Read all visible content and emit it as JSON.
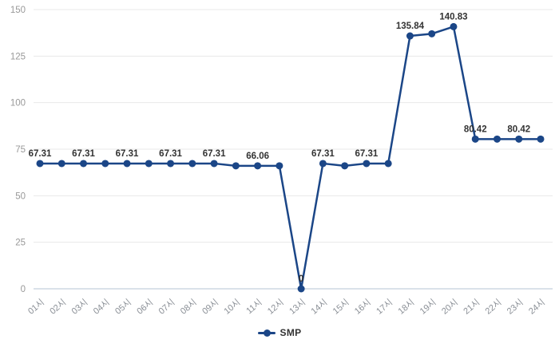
{
  "chart_data": {
    "type": "line",
    "title": "",
    "categories": [
      "01시",
      "02시",
      "03시",
      "04시",
      "05시",
      "06시",
      "07시",
      "08시",
      "09시",
      "10시",
      "11시",
      "12시",
      "13시",
      "14시",
      "15시",
      "16시",
      "17시",
      "18시",
      "19시",
      "20시",
      "21시",
      "22시",
      "23시",
      "24시"
    ],
    "series": [
      {
        "name": "SMP",
        "values": [
          67.31,
          67.31,
          67.31,
          67.31,
          67.31,
          67.31,
          67.31,
          67.31,
          67.31,
          66.06,
          66.06,
          66.06,
          0,
          67.31,
          66.06,
          67.31,
          67.31,
          135.84,
          137,
          140.83,
          80.42,
          80.42,
          80.42,
          80.42
        ],
        "data_labels": [
          "67.31",
          null,
          "67.31",
          null,
          "67.31",
          null,
          "67.31",
          null,
          "67.31",
          null,
          "66.06",
          null,
          "0",
          "67.31",
          null,
          "67.31",
          null,
          "135.84",
          null,
          "140.83",
          "80.42",
          null,
          "80.42",
          null
        ]
      }
    ],
    "ylim": [
      0,
      150
    ],
    "yticks": [
      0,
      25,
      50,
      75,
      100,
      125,
      150
    ],
    "grid": true,
    "legend_position": "bottom",
    "xlabel": "",
    "ylabel": ""
  },
  "legend": {
    "smp_label": "SMP"
  },
  "colors": {
    "line": "#1b4687",
    "marker": "#1b4687",
    "data_label": "#333333",
    "axis_tick_label": "#999999",
    "gridline": "#e8e8e8",
    "baseline": "#cdd9e2"
  }
}
